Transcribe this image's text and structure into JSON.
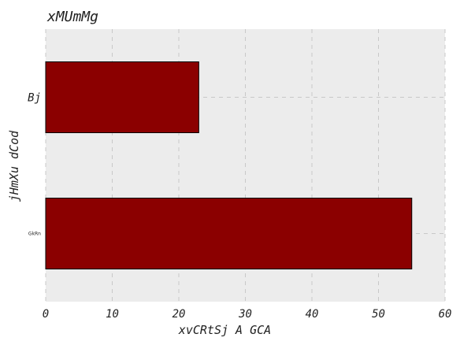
{
  "chart_data": {
    "type": "bar",
    "orientation": "horizontal",
    "title": "xMUmMg",
    "xlabel": "xvCRtSj A GCA",
    "ylabel": "jHmXu dCod",
    "categories": [
      "Bj",
      "GkRn"
    ],
    "values": [
      23,
      55
    ],
    "xlim": [
      0,
      60
    ],
    "xticks": [
      0,
      10,
      20,
      30,
      40,
      50,
      60
    ],
    "grid": true,
    "bar_color": "#8b0000",
    "background": "#ececec"
  }
}
